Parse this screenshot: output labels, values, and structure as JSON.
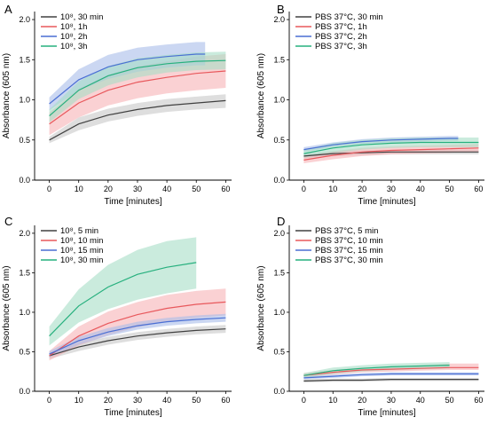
{
  "colors": {
    "black": "#404040",
    "red": "#e8585c",
    "blue": "#4a6fd4",
    "green": "#27b07e",
    "band_black": "#c8c8c8",
    "band_red": "#f6b3b6",
    "band_blue": "#a9bde9",
    "band_green": "#a7ddc7"
  },
  "chart_data": [
    {
      "type": "line",
      "panel_label": "A",
      "xlabel": "Time [minutes]",
      "ylabel": "Absorbance (605 nm)",
      "xlim": [
        -5,
        62
      ],
      "ylim": [
        0,
        2.1
      ],
      "xticks": [
        0,
        10,
        20,
        30,
        40,
        50,
        60
      ],
      "yticks": [
        0.0,
        0.5,
        1.0,
        1.5,
        2.0
      ],
      "ytick_labels": [
        "0.0",
        "0.5",
        "1.0",
        "1.5",
        "2.0"
      ],
      "legend_position": "top-left",
      "series": [
        {
          "name": "10⁸, 30 min",
          "color": "black",
          "x": [
            0,
            10,
            20,
            30,
            40,
            50,
            60
          ],
          "y": [
            0.5,
            0.7,
            0.81,
            0.88,
            0.93,
            0.96,
            0.99
          ],
          "lower": [
            0.46,
            0.62,
            0.73,
            0.8,
            0.85,
            0.88,
            0.9
          ],
          "upper": [
            0.54,
            0.78,
            0.89,
            0.96,
            1.01,
            1.04,
            1.07
          ]
        },
        {
          "name": "10⁸, 1h",
          "color": "red",
          "x": [
            0,
            10,
            20,
            30,
            40,
            50,
            60
          ],
          "y": [
            0.7,
            0.96,
            1.12,
            1.22,
            1.28,
            1.33,
            1.36
          ],
          "lower": [
            0.56,
            0.78,
            0.93,
            1.02,
            1.08,
            1.12,
            1.15
          ],
          "upper": [
            0.84,
            1.14,
            1.31,
            1.42,
            1.48,
            1.54,
            1.57
          ]
        },
        {
          "name": "10⁸, 2h",
          "color": "blue",
          "x": [
            0,
            10,
            20,
            30,
            40,
            50,
            53
          ],
          "y": [
            0.95,
            1.25,
            1.41,
            1.5,
            1.54,
            1.57,
            1.57
          ],
          "lower": [
            0.87,
            1.12,
            1.26,
            1.35,
            1.4,
            1.43,
            1.43
          ],
          "upper": [
            1.03,
            1.38,
            1.56,
            1.65,
            1.69,
            1.72,
            1.72
          ]
        },
        {
          "name": "10⁸, 3h",
          "color": "green",
          "x": [
            0,
            10,
            20,
            30,
            40,
            50,
            60
          ],
          "y": [
            0.8,
            1.12,
            1.3,
            1.4,
            1.45,
            1.48,
            1.49
          ],
          "lower": [
            0.72,
            1.01,
            1.18,
            1.28,
            1.34,
            1.37,
            1.38
          ],
          "upper": [
            0.88,
            1.23,
            1.42,
            1.52,
            1.56,
            1.59,
            1.6
          ]
        }
      ]
    },
    {
      "type": "line",
      "panel_label": "B",
      "xlabel": "Time [minutes]",
      "ylabel": "Absorbance (605 nm)",
      "xlim": [
        -5,
        62
      ],
      "ylim": [
        0,
        2.1
      ],
      "xticks": [
        0,
        10,
        20,
        30,
        40,
        50,
        60
      ],
      "yticks": [
        0.0,
        0.5,
        1.0,
        1.5,
        2.0
      ],
      "ytick_labels": [
        "0.0",
        "0.5",
        "1.0",
        "1.5",
        "2.0"
      ],
      "legend_position": "top-left",
      "series": [
        {
          "name": "PBS 37°C, 30 min",
          "color": "black",
          "x": [
            0,
            10,
            20,
            30,
            40,
            50,
            60
          ],
          "y": [
            0.3,
            0.33,
            0.34,
            0.35,
            0.35,
            0.35,
            0.35
          ],
          "lower": [
            0.27,
            0.3,
            0.31,
            0.32,
            0.32,
            0.32,
            0.32
          ],
          "upper": [
            0.33,
            0.36,
            0.37,
            0.38,
            0.38,
            0.38,
            0.38
          ]
        },
        {
          "name": "PBS 37°C, 1h",
          "color": "red",
          "x": [
            0,
            10,
            20,
            30,
            40,
            50,
            60
          ],
          "y": [
            0.25,
            0.31,
            0.35,
            0.37,
            0.38,
            0.39,
            0.4
          ],
          "lower": [
            0.21,
            0.26,
            0.3,
            0.32,
            0.33,
            0.34,
            0.35
          ],
          "upper": [
            0.29,
            0.36,
            0.4,
            0.42,
            0.43,
            0.44,
            0.45
          ]
        },
        {
          "name": "PBS 37°C, 2h",
          "color": "blue",
          "x": [
            0,
            10,
            20,
            30,
            40,
            50,
            53
          ],
          "y": [
            0.38,
            0.44,
            0.48,
            0.5,
            0.51,
            0.52,
            0.52
          ],
          "lower": [
            0.35,
            0.41,
            0.45,
            0.47,
            0.48,
            0.49,
            0.49
          ],
          "upper": [
            0.41,
            0.47,
            0.51,
            0.53,
            0.54,
            0.55,
            0.55
          ]
        },
        {
          "name": "PBS 37°C, 3h",
          "color": "green",
          "x": [
            0,
            10,
            20,
            30,
            40,
            50,
            60
          ],
          "y": [
            0.33,
            0.4,
            0.44,
            0.46,
            0.47,
            0.47,
            0.47
          ],
          "lower": [
            0.28,
            0.34,
            0.38,
            0.4,
            0.41,
            0.41,
            0.41
          ],
          "upper": [
            0.38,
            0.46,
            0.5,
            0.52,
            0.53,
            0.53,
            0.53
          ]
        }
      ]
    },
    {
      "type": "line",
      "panel_label": "C",
      "xlabel": "Time [minutes]",
      "ylabel": "Absorbance (605 nm)",
      "xlim": [
        -5,
        62
      ],
      "ylim": [
        0,
        2.1
      ],
      "xticks": [
        0,
        10,
        20,
        30,
        40,
        50,
        60
      ],
      "yticks": [
        0.0,
        0.5,
        1.0,
        1.5,
        2.0
      ],
      "ytick_labels": [
        "0.0",
        "0.5",
        "1.0",
        "1.5",
        "2.0"
      ],
      "legend_position": "top-left",
      "series": [
        {
          "name": "10⁸, 5 min",
          "color": "black",
          "x": [
            0,
            10,
            20,
            30,
            40,
            50,
            60
          ],
          "y": [
            0.45,
            0.56,
            0.64,
            0.7,
            0.74,
            0.77,
            0.79
          ],
          "lower": [
            0.41,
            0.51,
            0.59,
            0.65,
            0.69,
            0.72,
            0.74
          ],
          "upper": [
            0.49,
            0.61,
            0.69,
            0.75,
            0.79,
            0.82,
            0.84
          ]
        },
        {
          "name": "10⁸, 10 min",
          "color": "red",
          "x": [
            0,
            10,
            20,
            30,
            40,
            50,
            60
          ],
          "y": [
            0.45,
            0.7,
            0.86,
            0.97,
            1.05,
            1.1,
            1.13
          ],
          "lower": [
            0.39,
            0.58,
            0.71,
            0.81,
            0.88,
            0.93,
            0.96
          ],
          "upper": [
            0.51,
            0.82,
            1.01,
            1.13,
            1.22,
            1.27,
            1.3
          ]
        },
        {
          "name": "10⁸, 15 min",
          "color": "blue",
          "x": [
            0,
            10,
            20,
            30,
            40,
            50,
            60
          ],
          "y": [
            0.47,
            0.64,
            0.75,
            0.83,
            0.88,
            0.91,
            0.93
          ],
          "lower": [
            0.43,
            0.59,
            0.7,
            0.78,
            0.83,
            0.86,
            0.88
          ],
          "upper": [
            0.51,
            0.69,
            0.8,
            0.88,
            0.93,
            0.96,
            0.98
          ]
        },
        {
          "name": "10⁸, 30 min",
          "color": "green",
          "x": [
            0,
            10,
            20,
            30,
            40,
            50
          ],
          "y": [
            0.7,
            1.08,
            1.32,
            1.48,
            1.57,
            1.63
          ],
          "lower": [
            0.58,
            0.87,
            1.04,
            1.16,
            1.24,
            1.3
          ],
          "upper": [
            0.82,
            1.29,
            1.6,
            1.79,
            1.9,
            1.95
          ]
        }
      ]
    },
    {
      "type": "line",
      "panel_label": "D",
      "xlabel": "Time [minutes]",
      "ylabel": "Absorbance (605 nm)",
      "xlim": [
        -5,
        62
      ],
      "ylim": [
        0,
        2.1
      ],
      "xticks": [
        0,
        10,
        20,
        30,
        40,
        50,
        60
      ],
      "yticks": [
        0.0,
        0.5,
        1.0,
        1.5,
        2.0
      ],
      "ytick_labels": [
        "0.0",
        "0.5",
        "1.0",
        "1.5",
        "2.0"
      ],
      "legend_position": "top-left",
      "series": [
        {
          "name": "PBS 37°C, 5 min",
          "color": "black",
          "x": [
            0,
            10,
            20,
            30,
            40,
            50,
            60
          ],
          "y": [
            0.13,
            0.14,
            0.14,
            0.15,
            0.15,
            0.15,
            0.15
          ],
          "lower": [
            0.11,
            0.12,
            0.12,
            0.13,
            0.13,
            0.13,
            0.13
          ],
          "upper": [
            0.15,
            0.16,
            0.16,
            0.17,
            0.17,
            0.17,
            0.17
          ]
        },
        {
          "name": "PBS 37°C, 10 min",
          "color": "red",
          "x": [
            0,
            10,
            20,
            30,
            40,
            50,
            60
          ],
          "y": [
            0.2,
            0.24,
            0.27,
            0.28,
            0.29,
            0.3,
            0.3
          ],
          "lower": [
            0.17,
            0.21,
            0.24,
            0.25,
            0.26,
            0.27,
            0.27
          ],
          "upper": [
            0.23,
            0.27,
            0.3,
            0.31,
            0.32,
            0.35,
            0.35
          ]
        },
        {
          "name": "PBS 37°C, 15 min",
          "color": "blue",
          "x": [
            0,
            10,
            20,
            30,
            40,
            50,
            60
          ],
          "y": [
            0.17,
            0.19,
            0.21,
            0.22,
            0.22,
            0.22,
            0.22
          ],
          "lower": [
            0.15,
            0.17,
            0.19,
            0.2,
            0.2,
            0.2,
            0.2
          ],
          "upper": [
            0.19,
            0.21,
            0.23,
            0.24,
            0.24,
            0.24,
            0.24
          ]
        },
        {
          "name": "PBS 37°C, 30 min",
          "color": "green",
          "x": [
            0,
            10,
            20,
            30,
            40,
            50
          ],
          "y": [
            0.2,
            0.26,
            0.29,
            0.31,
            0.32,
            0.33
          ],
          "lower": [
            0.17,
            0.22,
            0.25,
            0.27,
            0.28,
            0.29
          ],
          "upper": [
            0.23,
            0.3,
            0.33,
            0.35,
            0.36,
            0.37
          ]
        }
      ]
    }
  ]
}
